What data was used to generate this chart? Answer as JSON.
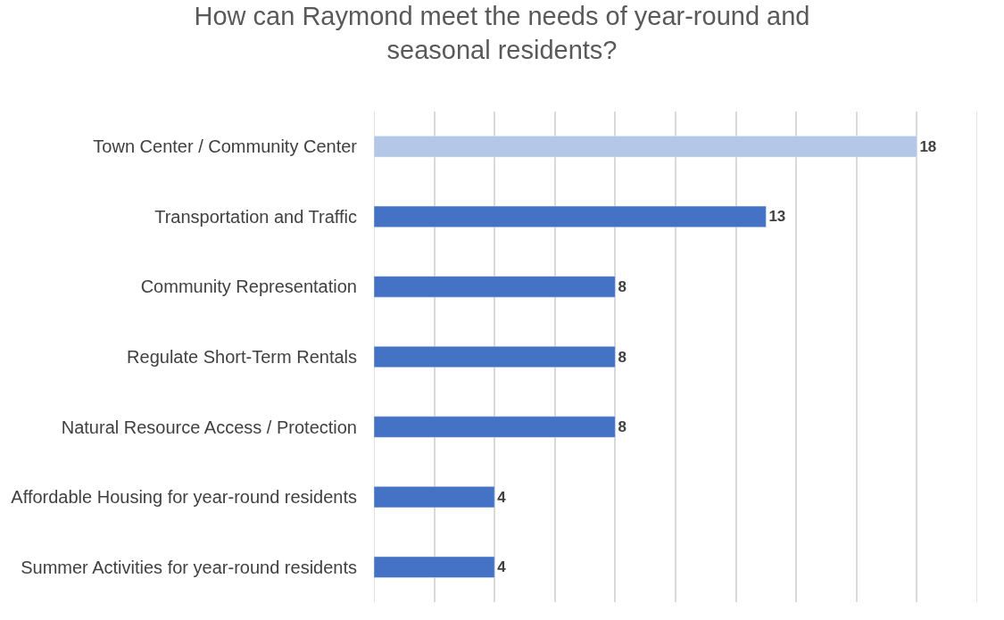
{
  "chart_data": {
    "type": "bar",
    "orientation": "horizontal",
    "title": "How can Raymond meet the needs of year-round and seasonal residents?",
    "categories": [
      "Town Center / Community Center",
      "Transportation and Traffic",
      "Community Representation",
      "Regulate Short-Term Rentals",
      "Natural Resource Access / Protection",
      "Affordable Housing for year-round residents",
      "Summer Activities for year-round residents"
    ],
    "values": [
      18,
      13,
      8,
      8,
      8,
      4,
      4
    ],
    "colors": [
      "#b4c7e7",
      "#4472c4",
      "#4472c4",
      "#4472c4",
      "#4472c4",
      "#4472c4",
      "#4472c4"
    ],
    "xlim": [
      0,
      20
    ],
    "xticks": [
      {
        "value": 0,
        "label": null
      },
      {
        "value": 2,
        "label": null
      },
      {
        "value": 4,
        "label": null
      },
      {
        "value": 6,
        "label": null
      },
      {
        "value": 8,
        "label": null
      },
      {
        "value": 10,
        "label": null
      },
      {
        "value": 12,
        "label": null
      },
      {
        "value": 14,
        "label": null
      },
      {
        "value": 16,
        "label": null
      },
      {
        "value": 18,
        "label": null
      },
      {
        "value": 20,
        "label": null
      }
    ],
    "tick_labels": "y",
    "grid": "x",
    "data_labels": true
  }
}
